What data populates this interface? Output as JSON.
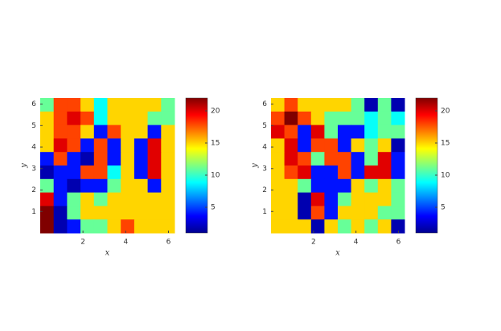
{
  "chart_data": [
    {
      "type": "heatmap",
      "xlabel": "x",
      "ylabel": "y",
      "colormap": "jet",
      "xlim": [
        0,
        6.2832
      ],
      "ylim": [
        0,
        6.2832
      ],
      "xticks": [
        2,
        4,
        6
      ],
      "yticks": [
        1,
        2,
        3,
        4,
        5,
        6
      ],
      "clim": [
        1,
        22
      ],
      "cticks": [
        5,
        10,
        15,
        20
      ],
      "z": [
        [
          11,
          18,
          18,
          15,
          9,
          15,
          15,
          15,
          15,
          11
        ],
        [
          15,
          18,
          20,
          18,
          9,
          15,
          15,
          15,
          11,
          11
        ],
        [
          15,
          18,
          18,
          15,
          4,
          18,
          15,
          15,
          4,
          15
        ],
        [
          15,
          20,
          18,
          4,
          18,
          4,
          15,
          4,
          20,
          15
        ],
        [
          4,
          18,
          4,
          2,
          18,
          4,
          15,
          4,
          20,
          15
        ],
        [
          2,
          4,
          4,
          18,
          18,
          9,
          15,
          4,
          20,
          15
        ],
        [
          11,
          4,
          2,
          4,
          4,
          11,
          15,
          15,
          4,
          15
        ],
        [
          20,
          4,
          11,
          15,
          11,
          15,
          15,
          15,
          15,
          15
        ],
        [
          22,
          2,
          11,
          15,
          15,
          15,
          15,
          15,
          15,
          15
        ],
        [
          22,
          2,
          4,
          11,
          11,
          15,
          18,
          15,
          15,
          15
        ]
      ]
    },
    {
      "type": "heatmap",
      "xlabel": "x",
      "ylabel": "y",
      "colormap": "jet",
      "xlim": [
        0,
        6.2832
      ],
      "ylim": [
        0,
        6.2832
      ],
      "xticks": [
        2,
        4,
        6
      ],
      "yticks": [
        1,
        2,
        3,
        4,
        5,
        6
      ],
      "clim": [
        1,
        22
      ],
      "cticks": [
        5,
        10,
        15,
        20
      ],
      "z": [
        [
          15,
          18,
          15,
          15,
          15,
          15,
          11,
          2,
          11,
          2
        ],
        [
          18,
          22,
          18,
          15,
          11,
          11,
          11,
          9,
          11,
          9
        ],
        [
          20,
          18,
          4,
          20,
          11,
          4,
          4,
          9,
          11,
          11
        ],
        [
          15,
          20,
          4,
          18,
          18,
          4,
          15,
          11,
          15,
          2
        ],
        [
          15,
          20,
          18,
          11,
          18,
          18,
          4,
          11,
          20,
          4
        ],
        [
          15,
          18,
          20,
          4,
          4,
          18,
          4,
          20,
          20,
          4
        ],
        [
          15,
          15,
          11,
          4,
          4,
          4,
          15,
          11,
          15,
          11
        ],
        [
          15,
          15,
          2,
          20,
          4,
          11,
          15,
          15,
          15,
          11
        ],
        [
          15,
          15,
          2,
          18,
          4,
          15,
          15,
          15,
          11,
          11
        ],
        [
          15,
          15,
          15,
          2,
          15,
          11,
          15,
          11,
          15,
          2
        ]
      ]
    }
  ]
}
